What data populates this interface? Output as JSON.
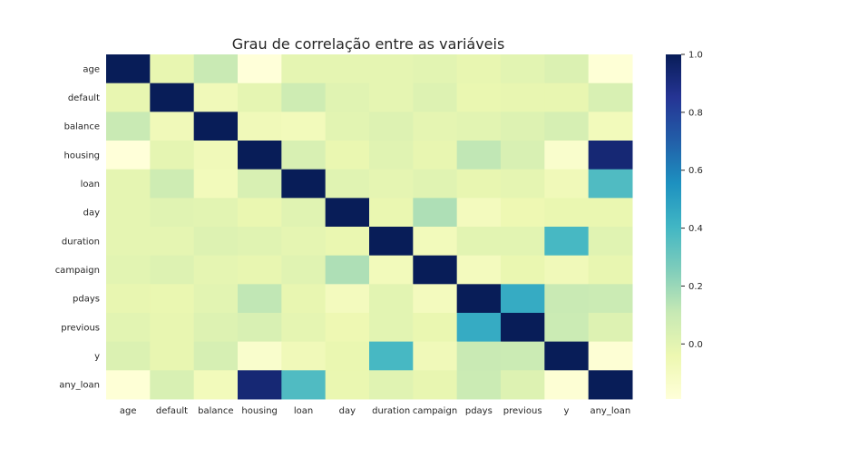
{
  "chart_data": {
    "type": "heatmap",
    "title": "Grau de correlação entre as variáveis",
    "row_labels": [
      "age",
      "default",
      "balance",
      "housing",
      "loan",
      "day",
      "duration",
      "campaign",
      "pdays",
      "previous",
      "y",
      "any_loan"
    ],
    "col_labels": [
      "age",
      "default",
      "balance",
      "housing",
      "loan",
      "day",
      "duration",
      "campaign",
      "pdays",
      "previous",
      "y",
      "any_loan"
    ],
    "values": [
      [
        1.0,
        -0.02,
        0.1,
        -0.19,
        -0.01,
        -0.01,
        -0.01,
        0.0,
        -0.02,
        0.0,
        0.03,
        -0.18
      ],
      [
        -0.02,
        1.0,
        -0.07,
        -0.01,
        0.08,
        0.01,
        -0.01,
        0.02,
        -0.03,
        -0.02,
        -0.02,
        0.04
      ],
      [
        0.1,
        -0.07,
        1.0,
        -0.07,
        -0.08,
        0.0,
        0.02,
        -0.01,
        0.0,
        0.02,
        0.05,
        -0.08
      ],
      [
        -0.19,
        -0.01,
        -0.07,
        1.0,
        0.04,
        -0.03,
        0.01,
        -0.02,
        0.12,
        0.04,
        -0.14,
        0.93
      ],
      [
        -0.01,
        0.08,
        -0.08,
        0.04,
        1.0,
        0.01,
        -0.01,
        0.01,
        -0.02,
        -0.01,
        -0.07,
        0.37
      ],
      [
        -0.01,
        0.01,
        0.0,
        -0.03,
        0.01,
        1.0,
        -0.03,
        0.16,
        -0.09,
        -0.05,
        -0.03,
        -0.03
      ],
      [
        -0.01,
        -0.01,
        0.02,
        0.01,
        -0.01,
        -0.03,
        1.0,
        -0.08,
        0.0,
        0.0,
        0.39,
        0.01
      ],
      [
        0.0,
        0.02,
        -0.01,
        -0.02,
        0.01,
        0.16,
        -0.08,
        1.0,
        -0.09,
        -0.03,
        -0.07,
        -0.02
      ],
      [
        -0.02,
        -0.03,
        0.0,
        0.12,
        -0.02,
        -0.09,
        0.0,
        -0.09,
        1.0,
        0.45,
        0.1,
        0.09
      ],
      [
        0.0,
        -0.02,
        0.02,
        0.04,
        -0.01,
        -0.05,
        0.0,
        -0.03,
        0.45,
        1.0,
        0.09,
        0.02
      ],
      [
        0.03,
        -0.02,
        0.05,
        -0.14,
        -0.07,
        -0.03,
        0.39,
        -0.07,
        0.1,
        0.09,
        1.0,
        -0.17
      ],
      [
        -0.18,
        0.04,
        -0.08,
        0.93,
        0.37,
        -0.03,
        0.01,
        -0.02,
        0.09,
        0.02,
        -0.17,
        1.0
      ]
    ],
    "colorbar": {
      "min": -0.19,
      "max": 1.0,
      "ticks": [
        1.0,
        0.8,
        0.6,
        0.4,
        0.2,
        0.0
      ],
      "tick_labels": [
        "1.0",
        "0.8",
        "0.6",
        "0.4",
        "0.2",
        "0.0"
      ],
      "colormap": "YlGnBu",
      "stops": [
        "#ffffd9",
        "#edf8b1",
        "#c7e9b4",
        "#7fcdbb",
        "#41b6c4",
        "#1d91c0",
        "#225ea8",
        "#253494",
        "#081d58"
      ]
    }
  }
}
